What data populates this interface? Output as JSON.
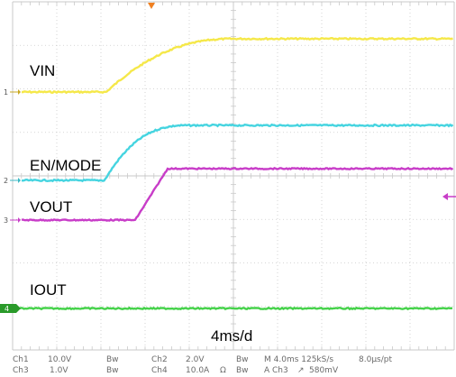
{
  "channels": [
    {
      "id": "1",
      "name": "VIN",
      "color": "#F5E84A"
    },
    {
      "id": "2",
      "name": "EN/MODE",
      "color": "#45D4E0"
    },
    {
      "id": "3",
      "name": "VOUT",
      "color": "#C83DC8"
    },
    {
      "id": "4",
      "name": "IOUT",
      "color": "#45D24A"
    }
  ],
  "timebase_label": "4ms/d",
  "status_bar": {
    "row1": [
      "Ch1",
      "10.0V",
      "Bw",
      "Ch2",
      "2.0V",
      "Bw",
      "M 4.0ms 125kS/s",
      "8.0µs/pt"
    ],
    "row2": [
      "Ch3",
      "1.0V",
      "Bw",
      "Ch4",
      "10.0A",
      "Ω",
      "Bw",
      "A Ch3",
      "↗",
      "580mV"
    ]
  },
  "colors": {
    "grid": "#c9c9c9",
    "trigger_marker": "#F08020",
    "ground_marker_ch4": "#2a9a2a"
  }
}
